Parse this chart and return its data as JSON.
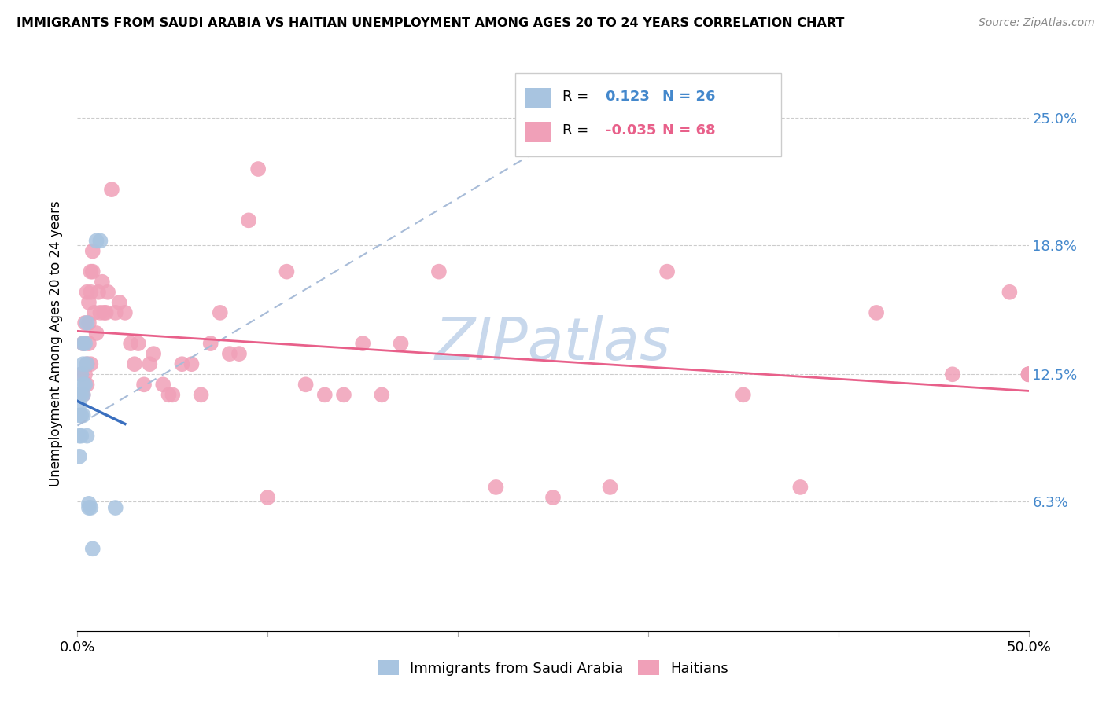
{
  "title": "IMMIGRANTS FROM SAUDI ARABIA VS HAITIAN UNEMPLOYMENT AMONG AGES 20 TO 24 YEARS CORRELATION CHART",
  "source": "Source: ZipAtlas.com",
  "ylabel": "Unemployment Among Ages 20 to 24 years",
  "ytick_labels": [
    "6.3%",
    "12.5%",
    "18.8%",
    "25.0%"
  ],
  "ytick_values": [
    0.063,
    0.125,
    0.188,
    0.25
  ],
  "xmin": 0.0,
  "xmax": 0.5,
  "ymin": 0.0,
  "ymax": 0.28,
  "legend_label_blue": "Immigrants from Saudi Arabia",
  "legend_label_pink": "Haitians",
  "blue_color": "#a8c4e0",
  "blue_line_color": "#3a6fbf",
  "pink_color": "#f0a0b8",
  "pink_line_color": "#e8608a",
  "dashed_line_color": "#a8bcd8",
  "watermark_text": "ZIPatlas",
  "watermark_color": "#c8d8ec",
  "r_blue": 0.123,
  "n_blue": 26,
  "r_pink": -0.035,
  "n_pink": 68,
  "saudi_x": [
    0.001,
    0.001,
    0.001,
    0.001,
    0.001,
    0.002,
    0.002,
    0.002,
    0.002,
    0.003,
    0.003,
    0.003,
    0.003,
    0.003,
    0.004,
    0.004,
    0.005,
    0.005,
    0.005,
    0.006,
    0.006,
    0.007,
    0.008,
    0.01,
    0.012,
    0.02
  ],
  "saudi_y": [
    0.085,
    0.095,
    0.105,
    0.11,
    0.115,
    0.095,
    0.105,
    0.115,
    0.125,
    0.105,
    0.115,
    0.12,
    0.13,
    0.14,
    0.12,
    0.14,
    0.095,
    0.13,
    0.15,
    0.06,
    0.062,
    0.06,
    0.04,
    0.19,
    0.19,
    0.06
  ],
  "haitian_x": [
    0.002,
    0.003,
    0.003,
    0.004,
    0.004,
    0.005,
    0.005,
    0.005,
    0.006,
    0.006,
    0.006,
    0.007,
    0.007,
    0.007,
    0.008,
    0.008,
    0.009,
    0.01,
    0.011,
    0.012,
    0.013,
    0.014,
    0.015,
    0.016,
    0.018,
    0.02,
    0.022,
    0.025,
    0.028,
    0.03,
    0.032,
    0.035,
    0.038,
    0.04,
    0.045,
    0.048,
    0.05,
    0.055,
    0.06,
    0.065,
    0.07,
    0.075,
    0.08,
    0.085,
    0.09,
    0.095,
    0.1,
    0.11,
    0.12,
    0.13,
    0.14,
    0.15,
    0.16,
    0.17,
    0.19,
    0.22,
    0.25,
    0.28,
    0.31,
    0.35,
    0.38,
    0.42,
    0.46,
    0.49,
    0.5,
    0.5,
    0.5,
    0.5
  ],
  "haitian_y": [
    0.125,
    0.14,
    0.115,
    0.15,
    0.125,
    0.165,
    0.13,
    0.12,
    0.15,
    0.14,
    0.16,
    0.175,
    0.165,
    0.13,
    0.185,
    0.175,
    0.155,
    0.145,
    0.165,
    0.155,
    0.17,
    0.155,
    0.155,
    0.165,
    0.215,
    0.155,
    0.16,
    0.155,
    0.14,
    0.13,
    0.14,
    0.12,
    0.13,
    0.135,
    0.12,
    0.115,
    0.115,
    0.13,
    0.13,
    0.115,
    0.14,
    0.155,
    0.135,
    0.135,
    0.2,
    0.225,
    0.065,
    0.175,
    0.12,
    0.115,
    0.115,
    0.14,
    0.115,
    0.14,
    0.175,
    0.07,
    0.065,
    0.07,
    0.175,
    0.115,
    0.07,
    0.155,
    0.125,
    0.165,
    0.125,
    0.125,
    0.125,
    0.125
  ]
}
